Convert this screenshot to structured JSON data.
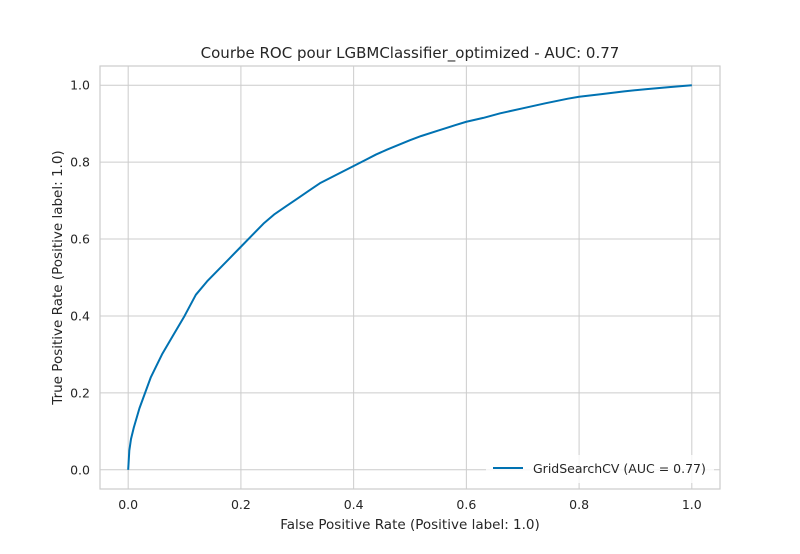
{
  "chart_data": {
    "type": "line",
    "title": "Courbe ROC pour LGBMClassifier_optimized - AUC: 0.77",
    "xlabel": "False Positive Rate (Positive label: 1.0)",
    "ylabel": "True Positive Rate (Positive label: 1.0)",
    "xlim": [
      -0.05,
      1.05
    ],
    "ylim": [
      -0.05,
      1.05
    ],
    "xticks": [
      0.0,
      0.2,
      0.4,
      0.6,
      0.8,
      1.0
    ],
    "yticks": [
      0.0,
      0.2,
      0.4,
      0.6,
      0.8,
      1.0
    ],
    "xtick_labels": [
      "0.0",
      "0.2",
      "0.4",
      "0.6",
      "0.8",
      "1.0"
    ],
    "ytick_labels": [
      "0.0",
      "0.2",
      "0.4",
      "0.6",
      "0.8",
      "1.0"
    ],
    "grid": true,
    "legend_position": "lower-right",
    "series": [
      {
        "name": "GridSearchCV (AUC = 0.77)",
        "color": "#0072b2",
        "x": [
          0.0,
          0.002,
          0.005,
          0.01,
          0.02,
          0.03,
          0.04,
          0.05,
          0.06,
          0.08,
          0.1,
          0.12,
          0.14,
          0.16,
          0.18,
          0.2,
          0.22,
          0.24,
          0.26,
          0.28,
          0.3,
          0.32,
          0.34,
          0.36,
          0.38,
          0.4,
          0.42,
          0.44,
          0.46,
          0.48,
          0.5,
          0.52,
          0.55,
          0.58,
          0.6,
          0.63,
          0.66,
          0.7,
          0.74,
          0.78,
          0.8,
          0.84,
          0.88,
          0.92,
          0.96,
          1.0
        ],
        "y": [
          0.0,
          0.05,
          0.08,
          0.11,
          0.16,
          0.2,
          0.24,
          0.27,
          0.3,
          0.35,
          0.4,
          0.455,
          0.49,
          0.52,
          0.55,
          0.58,
          0.61,
          0.64,
          0.665,
          0.685,
          0.705,
          0.725,
          0.745,
          0.76,
          0.775,
          0.79,
          0.805,
          0.82,
          0.833,
          0.845,
          0.857,
          0.868,
          0.882,
          0.896,
          0.905,
          0.915,
          0.927,
          0.94,
          0.953,
          0.965,
          0.97,
          0.977,
          0.984,
          0.99,
          0.995,
          1.0
        ]
      }
    ]
  }
}
